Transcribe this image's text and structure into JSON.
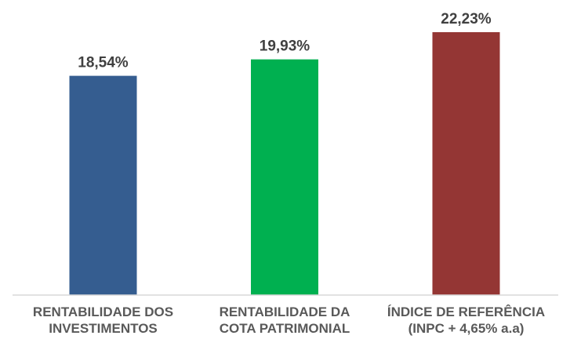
{
  "chart_data": {
    "type": "bar",
    "categories": [
      [
        "RENTABILIDADE DOS",
        "INVESTIMENTOS"
      ],
      [
        "RENTABILIDADE DA",
        "COTA PATRIMONIAL"
      ],
      [
        "ÍNDICE DE REFERÊNCIA",
        "(INPC + 4,65% a.a)"
      ]
    ],
    "values": [
      18.54,
      19.93,
      22.23
    ],
    "value_labels": [
      "18,54%",
      "19,93%",
      "22,23%"
    ],
    "colors": [
      "#355d90",
      "#00b050",
      "#943634"
    ],
    "ylim": [
      0,
      22.23
    ],
    "grid": false,
    "legend": "none"
  }
}
